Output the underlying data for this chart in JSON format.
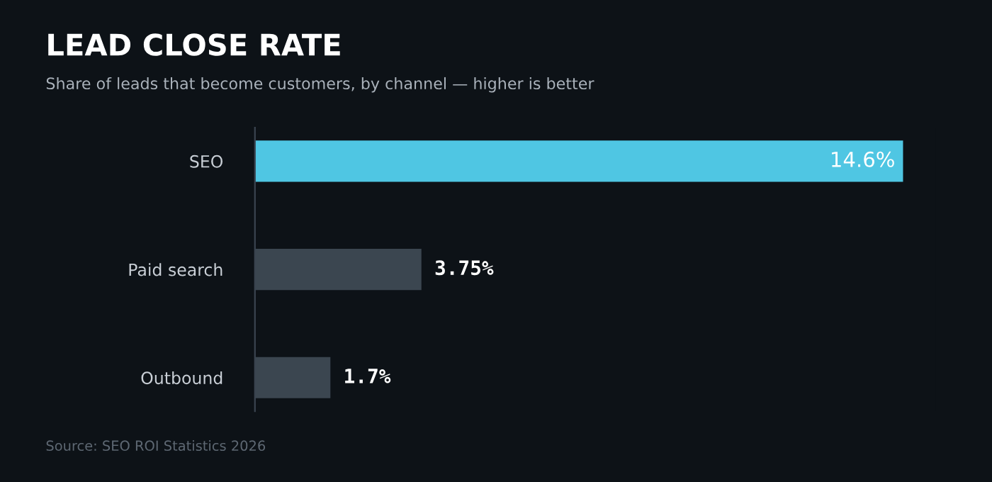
{
  "chart_data": {
    "type": "bar",
    "orientation": "horizontal",
    "title": "LEAD CLOSE RATE",
    "subtitle": "Share of leads that become customers, by channel — higher is better",
    "categories": [
      "SEO",
      "Paid search",
      "Outbound"
    ],
    "values": [
      14.6,
      3.75,
      1.7
    ],
    "colors": [
      "#4fc6e3",
      "#3b4650",
      "#3b4650"
    ],
    "value_labels": [
      "14.6%",
      "3.75%",
      "1.7%"
    ],
    "annotations": [
      "Source: SEO ROI Statistics 2026"
    ],
    "grid": false,
    "legend": false
  }
}
